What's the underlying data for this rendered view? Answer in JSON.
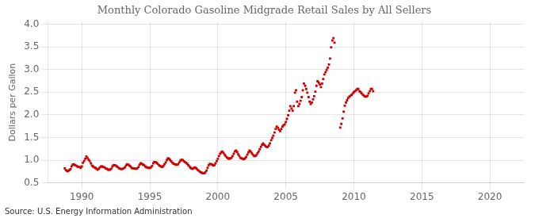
{
  "chart_data": {
    "type": "scatter",
    "title": "Monthly Colorado Gasoline Midgrade Retail Sales by All Sellers",
    "ylabel": "Dollars per Gallon",
    "annotations": [
      "Source: U.S. Energy Information Administration"
    ],
    "color": "#cc0000",
    "marker": "square",
    "grid": true,
    "xlim": [
      1987.5,
      2022.5
    ],
    "ylim": [
      0.5,
      4.05
    ],
    "xticks": [
      1990,
      1995,
      2000,
      2005,
      2010,
      2015,
      2020
    ],
    "yticks": [
      0.5,
      {
        "value": 1,
        "label": "1.0"
      },
      1.5,
      {
        "value": 2,
        "label": "2.0"
      },
      2.5,
      {
        "value": 3,
        "label": "3.0"
      },
      3.5,
      {
        "value": 4,
        "label": "4.0"
      }
    ],
    "x": [
      1988.75,
      1988.83,
      1988.92,
      1989.0,
      1989.08,
      1989.17,
      1989.25,
      1989.33,
      1989.42,
      1989.5,
      1989.58,
      1989.67,
      1989.75,
      1989.83,
      1989.92,
      1990.0,
      1990.08,
      1990.17,
      1990.25,
      1990.33,
      1990.42,
      1990.5,
      1990.58,
      1990.67,
      1990.75,
      1990.83,
      1990.92,
      1991.0,
      1991.08,
      1991.17,
      1991.25,
      1991.33,
      1991.42,
      1991.5,
      1991.58,
      1991.67,
      1991.75,
      1991.83,
      1991.92,
      1992.0,
      1992.08,
      1992.17,
      1992.25,
      1992.33,
      1992.42,
      1992.5,
      1992.58,
      1992.67,
      1992.75,
      1992.83,
      1992.92,
      1993.0,
      1993.08,
      1993.17,
      1993.25,
      1993.33,
      1993.42,
      1993.5,
      1993.58,
      1993.67,
      1993.75,
      1993.83,
      1993.92,
      1994.0,
      1994.08,
      1994.17,
      1994.25,
      1994.33,
      1994.42,
      1994.5,
      1994.58,
      1994.67,
      1994.75,
      1994.83,
      1994.92,
      1995.0,
      1995.08,
      1995.17,
      1995.25,
      1995.33,
      1995.42,
      1995.5,
      1995.58,
      1995.67,
      1995.75,
      1995.83,
      1995.92,
      1996.0,
      1996.08,
      1996.17,
      1996.25,
      1996.33,
      1996.42,
      1996.5,
      1996.58,
      1996.67,
      1996.75,
      1996.83,
      1996.92,
      1997.0,
      1997.08,
      1997.17,
      1997.25,
      1997.33,
      1997.42,
      1997.5,
      1997.58,
      1997.67,
      1997.75,
      1997.83,
      1997.92,
      1998.0,
      1998.08,
      1998.17,
      1998.25,
      1998.33,
      1998.42,
      1998.5,
      1998.58,
      1998.67,
      1998.75,
      1998.83,
      1998.92,
      1999.0,
      1999.08,
      1999.17,
      1999.25,
      1999.33,
      1999.42,
      1999.5,
      1999.58,
      1999.67,
      1999.75,
      1999.83,
      1999.92,
      2000.0,
      2000.08,
      2000.17,
      2000.25,
      2000.33,
      2000.42,
      2000.5,
      2000.58,
      2000.67,
      2000.75,
      2000.83,
      2000.92,
      2001.0,
      2001.08,
      2001.17,
      2001.25,
      2001.33,
      2001.42,
      2001.5,
      2001.58,
      2001.67,
      2001.75,
      2001.83,
      2001.92,
      2002.0,
      2002.08,
      2002.17,
      2002.25,
      2002.33,
      2002.42,
      2002.5,
      2002.58,
      2002.67,
      2002.75,
      2002.83,
      2002.92,
      2003.0,
      2003.08,
      2003.17,
      2003.25,
      2003.33,
      2003.42,
      2003.5,
      2003.58,
      2003.67,
      2003.75,
      2003.83,
      2003.92,
      2004.0,
      2004.08,
      2004.17,
      2004.25,
      2004.33,
      2004.42,
      2004.5,
      2004.58,
      2004.67,
      2004.75,
      2004.83,
      2004.92,
      2005.0,
      2005.08,
      2005.17,
      2005.25,
      2005.33,
      2005.42,
      2005.5,
      2005.58,
      2005.67,
      2005.75,
      2005.83,
      2005.92,
      2006.0,
      2006.08,
      2006.17,
      2006.25,
      2006.33,
      2006.42,
      2006.5,
      2006.58,
      2006.67,
      2006.75,
      2006.83,
      2006.92,
      2007.0,
      2007.08,
      2007.17,
      2007.25,
      2007.33,
      2007.42,
      2007.5,
      2007.58,
      2007.67,
      2007.75,
      2007.83,
      2007.92,
      2008.0,
      2008.08,
      2008.17,
      2008.25,
      2008.33,
      2008.42,
      2008.5,
      2008.58,
      2009.0,
      2009.08,
      2009.17,
      2009.25,
      2009.33,
      2009.42,
      2009.5,
      2009.58,
      2009.67,
      2009.75,
      2009.83,
      2009.92,
      2010.0,
      2010.08,
      2010.17,
      2010.25,
      2010.33,
      2010.42,
      2010.5,
      2010.58,
      2010.67,
      2010.75,
      2010.83,
      2010.92,
      2011.0,
      2011.08,
      2011.17,
      2011.25,
      2011.33,
      2011.42
    ],
    "values": [
      0.82,
      0.78,
      0.76,
      0.76,
      0.78,
      0.8,
      0.86,
      0.9,
      0.91,
      0.89,
      0.88,
      0.86,
      0.85,
      0.85,
      0.83,
      0.86,
      0.94,
      0.98,
      1.03,
      1.08,
      1.05,
      1.01,
      0.98,
      0.93,
      0.88,
      0.86,
      0.84,
      0.83,
      0.81,
      0.79,
      0.81,
      0.84,
      0.86,
      0.86,
      0.85,
      0.84,
      0.82,
      0.81,
      0.79,
      0.79,
      0.79,
      0.81,
      0.86,
      0.89,
      0.89,
      0.88,
      0.86,
      0.84,
      0.82,
      0.81,
      0.8,
      0.81,
      0.82,
      0.84,
      0.88,
      0.91,
      0.9,
      0.88,
      0.86,
      0.83,
      0.82,
      0.82,
      0.81,
      0.81,
      0.82,
      0.85,
      0.9,
      0.93,
      0.92,
      0.9,
      0.89,
      0.86,
      0.84,
      0.84,
      0.83,
      0.83,
      0.84,
      0.87,
      0.93,
      0.96,
      0.96,
      0.94,
      0.92,
      0.89,
      0.87,
      0.86,
      0.85,
      0.87,
      0.91,
      0.95,
      1.0,
      1.04,
      1.03,
      1.0,
      0.97,
      0.94,
      0.92,
      0.91,
      0.9,
      0.9,
      0.91,
      0.95,
      0.99,
      1.01,
      1.0,
      0.98,
      0.96,
      0.94,
      0.92,
      0.89,
      0.86,
      0.83,
      0.81,
      0.81,
      0.83,
      0.84,
      0.82,
      0.79,
      0.77,
      0.75,
      0.73,
      0.72,
      0.71,
      0.71,
      0.73,
      0.77,
      0.83,
      0.89,
      0.92,
      0.91,
      0.9,
      0.88,
      0.89,
      0.93,
      0.98,
      1.03,
      1.09,
      1.14,
      1.17,
      1.19,
      1.16,
      1.12,
      1.09,
      1.06,
      1.04,
      1.03,
      1.04,
      1.05,
      1.09,
      1.14,
      1.19,
      1.21,
      1.18,
      1.13,
      1.09,
      1.05,
      1.04,
      1.03,
      1.02,
      1.04,
      1.07,
      1.12,
      1.17,
      1.21,
      1.19,
      1.15,
      1.12,
      1.09,
      1.09,
      1.11,
      1.15,
      1.19,
      1.24,
      1.29,
      1.34,
      1.37,
      1.34,
      1.31,
      1.29,
      1.29,
      1.32,
      1.37,
      1.44,
      1.49,
      1.54,
      1.61,
      1.69,
      1.74,
      1.71,
      1.67,
      1.64,
      1.69,
      1.74,
      1.77,
      1.79,
      1.84,
      1.91,
      1.99,
      2.09,
      2.19,
      2.14,
      2.09,
      2.19,
      2.49,
      2.54,
      2.29,
      2.19,
      2.24,
      2.31,
      2.39,
      2.54,
      2.69,
      2.64,
      2.57,
      2.49,
      2.39,
      2.29,
      2.24,
      2.27,
      2.34,
      2.41,
      2.51,
      2.64,
      2.74,
      2.71,
      2.67,
      2.61,
      2.69,
      2.79,
      2.89,
      2.94,
      2.99,
      3.04,
      3.11,
      3.24,
      3.49,
      3.64,
      3.69,
      3.59,
      1.72,
      1.8,
      1.92,
      2.07,
      2.2,
      2.27,
      2.32,
      2.37,
      2.4,
      2.42,
      2.44,
      2.47,
      2.5,
      2.52,
      2.54,
      2.57,
      2.57,
      2.52,
      2.5,
      2.47,
      2.44,
      2.42,
      2.4,
      2.4,
      2.42,
      2.47,
      2.52,
      2.57,
      2.57,
      2.52
    ]
  }
}
